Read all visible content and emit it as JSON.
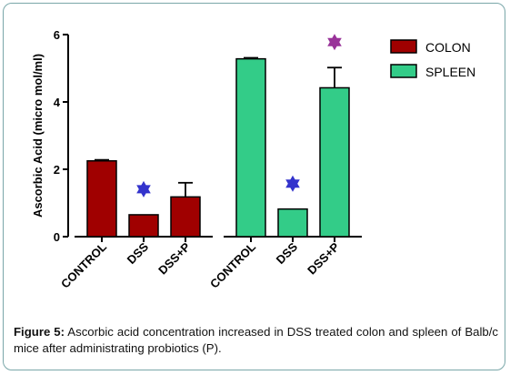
{
  "chart_data": {
    "type": "bar",
    "ylabel": "Ascorbic Acid (micro mol/ml)",
    "ylim": [
      0,
      6
    ],
    "yticks": [
      "0",
      "2",
      "4",
      "6"
    ],
    "grid": false,
    "legend_position": "top-right",
    "series": [
      {
        "name": "COLON",
        "color": "#a00000",
        "categories": [
          "CONTROL",
          "DSS",
          "DSS+P"
        ],
        "values": [
          2.25,
          0.65,
          1.18
        ],
        "errors": [
          0.03,
          0.0,
          0.42
        ],
        "significant": [
          false,
          true,
          false
        ],
        "star_color": "#3333cc"
      },
      {
        "name": "SPLEEN",
        "color": "#33cc88",
        "categories": [
          "CONTROL",
          "DSS",
          "DSS+P"
        ],
        "values": [
          5.28,
          0.82,
          4.42
        ],
        "errors": [
          0.03,
          0.0,
          0.6
        ],
        "significant": [
          false,
          true,
          true
        ],
        "star_colors": [
          "#3333cc",
          "#3333cc",
          "#993399"
        ]
      }
    ]
  },
  "caption": {
    "label": "Figure 5:",
    "text": " Ascorbic acid concentration increased in DSS treated colon and spleen of Balb/c mice after administrating probiotics (P)."
  }
}
